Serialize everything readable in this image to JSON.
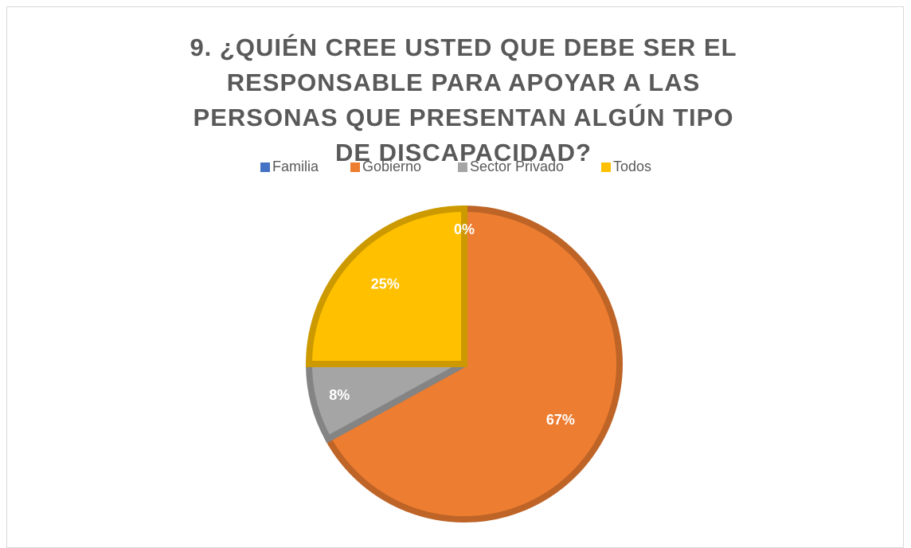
{
  "chart_data": {
    "type": "pie",
    "title": "9. ¿QUIÉN CREE USTED QUE DEBE SER EL RESPONSABLE PARA APOYAR A LAS PERSONAS QUE PRESENTAN ALGÚN TIPO DE DISCAPACIDAD?",
    "categories": [
      "Familia",
      "Gobierno",
      "Sector Privado",
      "Todos"
    ],
    "values": [
      0,
      67,
      8,
      25
    ],
    "value_labels": [
      "0%",
      "67%",
      "8%",
      "25%"
    ],
    "colors": [
      "#4472c4",
      "#ed7d31",
      "#a5a5a5",
      "#ffc000"
    ],
    "legend": "top"
  }
}
